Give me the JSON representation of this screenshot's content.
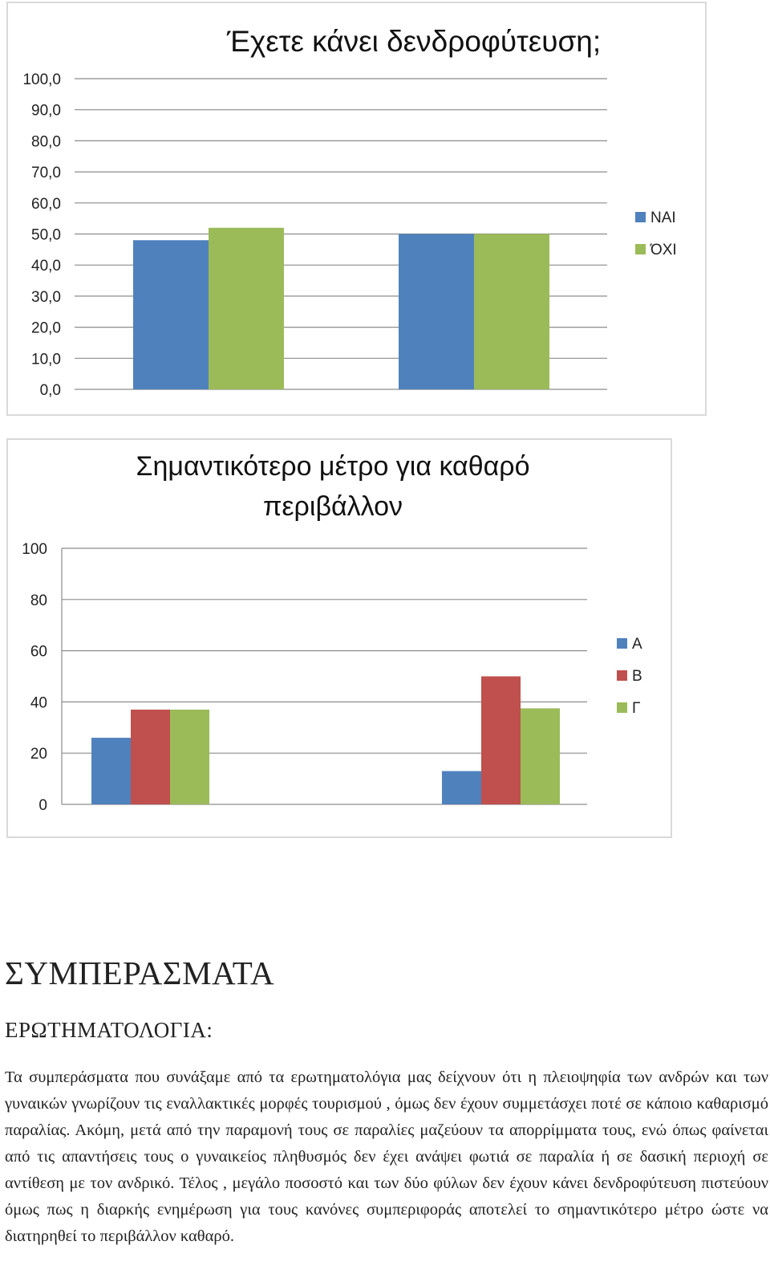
{
  "chart_data": [
    {
      "type": "bar",
      "title": "Έχετε κάνει δενδροφύτευση;",
      "categories": [
        "",
        ""
      ],
      "series": [
        {
          "name": "ΝΑΙ",
          "values": [
            48.0,
            50.0
          ],
          "color": "#4f81bd"
        },
        {
          "name": "ΌΧΙ",
          "values": [
            52.0,
            50.0
          ],
          "color": "#9bbb59"
        }
      ],
      "ylim": [
        0,
        100
      ],
      "yticks": [
        "0,0",
        "10,0",
        "20,0",
        "30,0",
        "40,0",
        "50,0",
        "60,0",
        "70,0",
        "80,0",
        "90,0",
        "100,0"
      ],
      "legend": "right",
      "grid": true
    },
    {
      "type": "bar",
      "title_lines": [
        "Σημαντικότερο μέτρο για καθαρό",
        "περιβάλλον"
      ],
      "categories": [
        "",
        ""
      ],
      "series": [
        {
          "name": "Α",
          "values": [
            26,
            13
          ],
          "color": "#4f81bd"
        },
        {
          "name": "Β",
          "values": [
            37,
            50
          ],
          "color": "#c0504d"
        },
        {
          "name": "Γ",
          "values": [
            37,
            37.5
          ],
          "color": "#9bbb59"
        }
      ],
      "ylim": [
        0,
        100
      ],
      "yticks": [
        "0",
        "20",
        "40",
        "60",
        "80",
        "100"
      ],
      "legend": "right",
      "grid": true
    }
  ],
  "document": {
    "section_title": "ΣΥΜΠΕΡΑΣΜΑΤΑ",
    "subtitle": "ΕΡΩΤΗΜΑΤΟΛΟΓΙΑ:",
    "paragraph": "Τα συμπεράσματα που συνάξαμε από τα ερωτηματολόγια μας δείχνουν ότι η πλειοψηφία των ανδρών και των γυναικών γνωρίζουν τις εναλλακτικές μορφές τουρισμού , όμως δεν έχουν συμμετάσχει ποτέ σε κάποιο καθαρισμό παραλίας. Ακόμη, μετά από την παραμονή τους σε παραλίες μαζεύουν τα απορρίμματα τους, ενώ όπως φαίνεται από τις απαντήσεις τους ο γυναικείος πληθυσμός δεν έχει ανάψει φωτιά σε παραλία ή σε δασική περιοχή σε αντίθεση με τον ανδρικό. Τέλος , μεγάλο ποσοστό και των δύο φύλων δεν έχουν κάνει δενδροφύτευση πιστεύουν όμως πως η διαρκής ενημέρωση για τους κανόνες συμπεριφοράς αποτελεί το σημαντικότερο μέτρο ώστε να διατηρηθεί το περιβάλλον καθαρό."
  }
}
